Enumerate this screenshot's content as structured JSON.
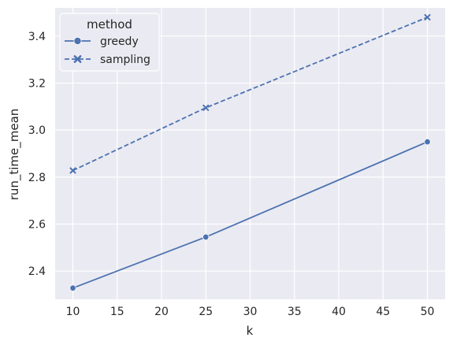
{
  "chart_data": {
    "type": "line",
    "title": "",
    "xlabel": "k",
    "ylabel": "run_time_mean",
    "x": [
      10,
      25,
      50
    ],
    "xlim": [
      8,
      52
    ],
    "ylim": [
      2.28,
      3.52
    ],
    "xticks": [
      10,
      15,
      20,
      25,
      30,
      35,
      40,
      45,
      50
    ],
    "yticks": [
      2.4,
      2.6,
      2.8,
      3.0,
      3.2,
      3.4
    ],
    "grid": true,
    "legend": {
      "title": "method",
      "placement": "top-left"
    },
    "series": [
      {
        "name": "greedy",
        "values": [
          2.328,
          2.545,
          2.95
        ],
        "marker": "circle",
        "linestyle": "solid",
        "color": "#4c72b0"
      },
      {
        "name": "sampling",
        "values": [
          2.828,
          3.095,
          3.48
        ],
        "marker": "x",
        "linestyle": "dashed",
        "color": "#4c72b0"
      }
    ],
    "colors": {
      "plot_background": "#eaeaf2",
      "grid": "#ffffff",
      "text": "#262626"
    }
  }
}
